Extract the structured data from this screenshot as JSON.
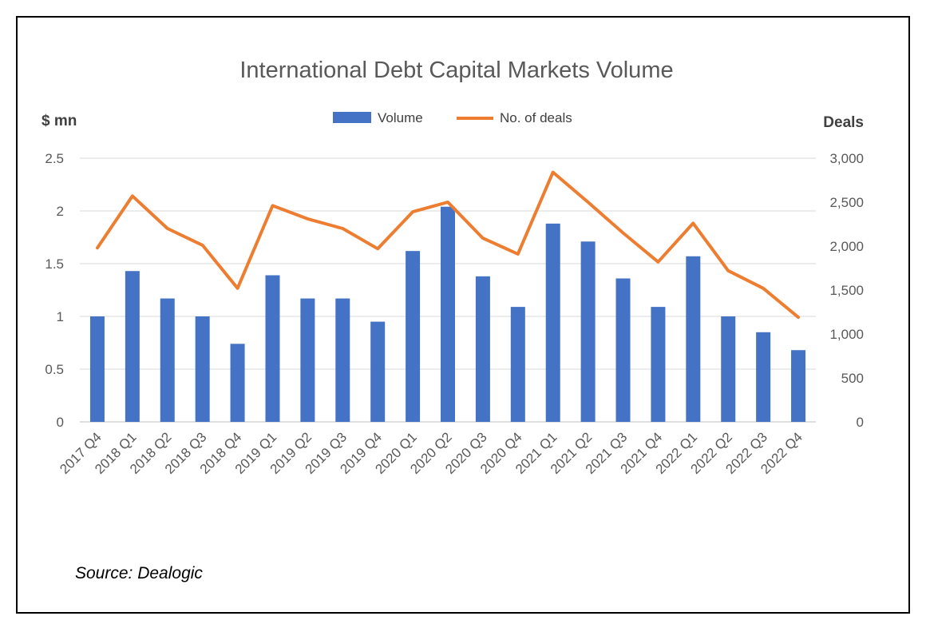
{
  "chart_data": {
    "type": "bar",
    "title": "International Debt Capital Markets Volume",
    "ylabel": "$ mn",
    "y2label": "Deals",
    "categories": [
      "2017 Q4",
      "2018 Q1",
      "2018 Q2",
      "2018 Q3",
      "2018 Q4",
      "2019 Q1",
      "2019 Q2",
      "2019 Q3",
      "2019 Q4",
      "2020 Q1",
      "2020 Q2",
      "2020 Q3",
      "2020 Q4",
      "2021 Q1",
      "2021 Q2",
      "2021 Q3",
      "2021 Q4",
      "2022 Q1",
      "2022 Q2",
      "2022 Q3",
      "2022 Q4"
    ],
    "series": [
      {
        "name": "Volume",
        "kind": "bar",
        "axis": "left",
        "color": "#4472C4",
        "values": [
          1.0,
          1.43,
          1.17,
          1.0,
          0.74,
          1.39,
          1.17,
          1.17,
          0.95,
          1.62,
          2.04,
          1.38,
          1.09,
          1.88,
          1.71,
          1.36,
          1.09,
          1.57,
          1.0,
          0.85,
          0.68
        ]
      },
      {
        "name": "No. of deals",
        "kind": "line",
        "axis": "right",
        "color": "#ED7D31",
        "values": [
          1980,
          2570,
          2200,
          2010,
          1520,
          2460,
          2310,
          2200,
          1970,
          2390,
          2500,
          2090,
          1910,
          2840,
          2500,
          2150,
          1820,
          2260,
          1720,
          1520,
          1190
        ]
      }
    ],
    "ylim": [
      0,
      2.5
    ],
    "y2lim": [
      0,
      3000
    ],
    "yticks": [
      "0",
      "0.5",
      "1",
      "1.5",
      "2",
      "2.5"
    ],
    "y2ticks": [
      "0",
      "500",
      "1,000",
      "1,500",
      "2,000",
      "2,500",
      "3,000"
    ],
    "grid": true,
    "legend": "top-center"
  },
  "source": "Source: Dealogic"
}
